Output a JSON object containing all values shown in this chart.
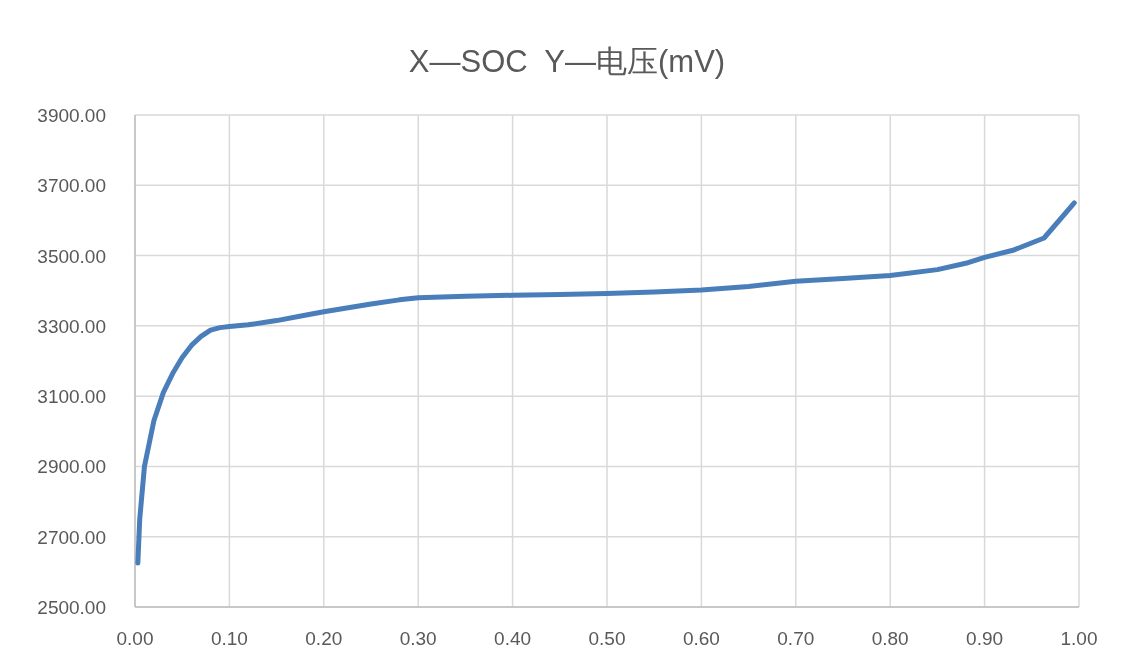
{
  "chart_data": {
    "type": "line",
    "title": "X—SOC  Y—电压(mV)",
    "x": [
      0.003,
      0.005,
      0.01,
      0.02,
      0.03,
      0.04,
      0.05,
      0.06,
      0.07,
      0.08,
      0.09,
      0.1,
      0.12,
      0.15,
      0.18,
      0.2,
      0.25,
      0.28,
      0.3,
      0.35,
      0.4,
      0.45,
      0.5,
      0.55,
      0.6,
      0.65,
      0.7,
      0.75,
      0.8,
      0.85,
      0.88,
      0.9,
      0.93,
      0.963,
      0.995
    ],
    "series": [
      {
        "color": "#4a7ebb",
        "values": [
          2625,
          2750,
          2900,
          3030,
          3110,
          3165,
          3210,
          3245,
          3270,
          3288,
          3295,
          3298,
          3303,
          3315,
          3330,
          3340,
          3362,
          3374,
          3380,
          3384,
          3387,
          3389,
          3392,
          3396,
          3402,
          3412,
          3427,
          3435,
          3443,
          3460,
          3478,
          3495,
          3515,
          3550,
          3650
        ]
      }
    ],
    "xlim": [
      0,
      1
    ],
    "ylim": [
      2500,
      3900
    ],
    "xticks": [
      {
        "value": 0,
        "label": "0.00"
      },
      {
        "value": 0.1,
        "label": "0.10"
      },
      {
        "value": 0.2,
        "label": "0.20"
      },
      {
        "value": 0.3,
        "label": "0.30"
      },
      {
        "value": 0.4,
        "label": "0.40"
      },
      {
        "value": 0.5,
        "label": "0.50"
      },
      {
        "value": 0.6,
        "label": "0.60"
      },
      {
        "value": 0.7,
        "label": "0.70"
      },
      {
        "value": 0.8,
        "label": "0.80"
      },
      {
        "value": 0.9,
        "label": "0.90"
      },
      {
        "value": 1,
        "label": "1.00"
      }
    ],
    "yticks": [
      {
        "value": 2500,
        "label": "2500.00"
      },
      {
        "value": 2700,
        "label": "2700.00"
      },
      {
        "value": 2900,
        "label": "2900.00"
      },
      {
        "value": 3100,
        "label": "3100.00"
      },
      {
        "value": 3300,
        "label": "3300.00"
      },
      {
        "value": 3500,
        "label": "3500.00"
      },
      {
        "value": 3700,
        "label": "3700.00"
      },
      {
        "value": 3900,
        "label": "3900.00"
      }
    ],
    "grid": true,
    "marker": "none",
    "line_style": "solid"
  }
}
